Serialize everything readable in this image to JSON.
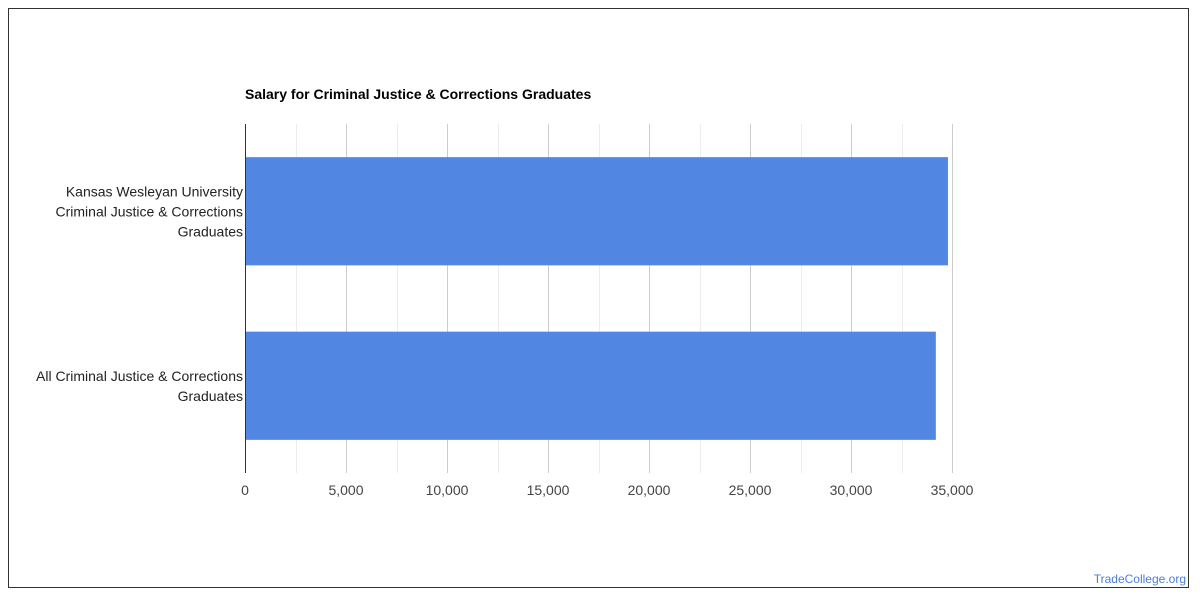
{
  "chart_data": {
    "type": "bar",
    "orientation": "horizontal",
    "title": "Salary for Criminal Justice & Corrections Graduates",
    "categories": [
      [
        "Kansas Wesleyan University",
        "Criminal Justice & Corrections",
        "Graduates"
      ],
      [
        "All Criminal Justice & Corrections",
        "Graduates"
      ]
    ],
    "values": [
      34800,
      34200
    ],
    "xlim": [
      0,
      35000
    ],
    "xticks": [
      0,
      5000,
      10000,
      15000,
      20000,
      25000,
      30000,
      35000
    ],
    "xtick_labels": [
      "0",
      "5,000",
      "10,000",
      "15,000",
      "20,000",
      "25,000",
      "30,000",
      "35,000"
    ],
    "bar_color": "#5286e3",
    "grid": true
  },
  "watermark": "TradeCollege.org"
}
